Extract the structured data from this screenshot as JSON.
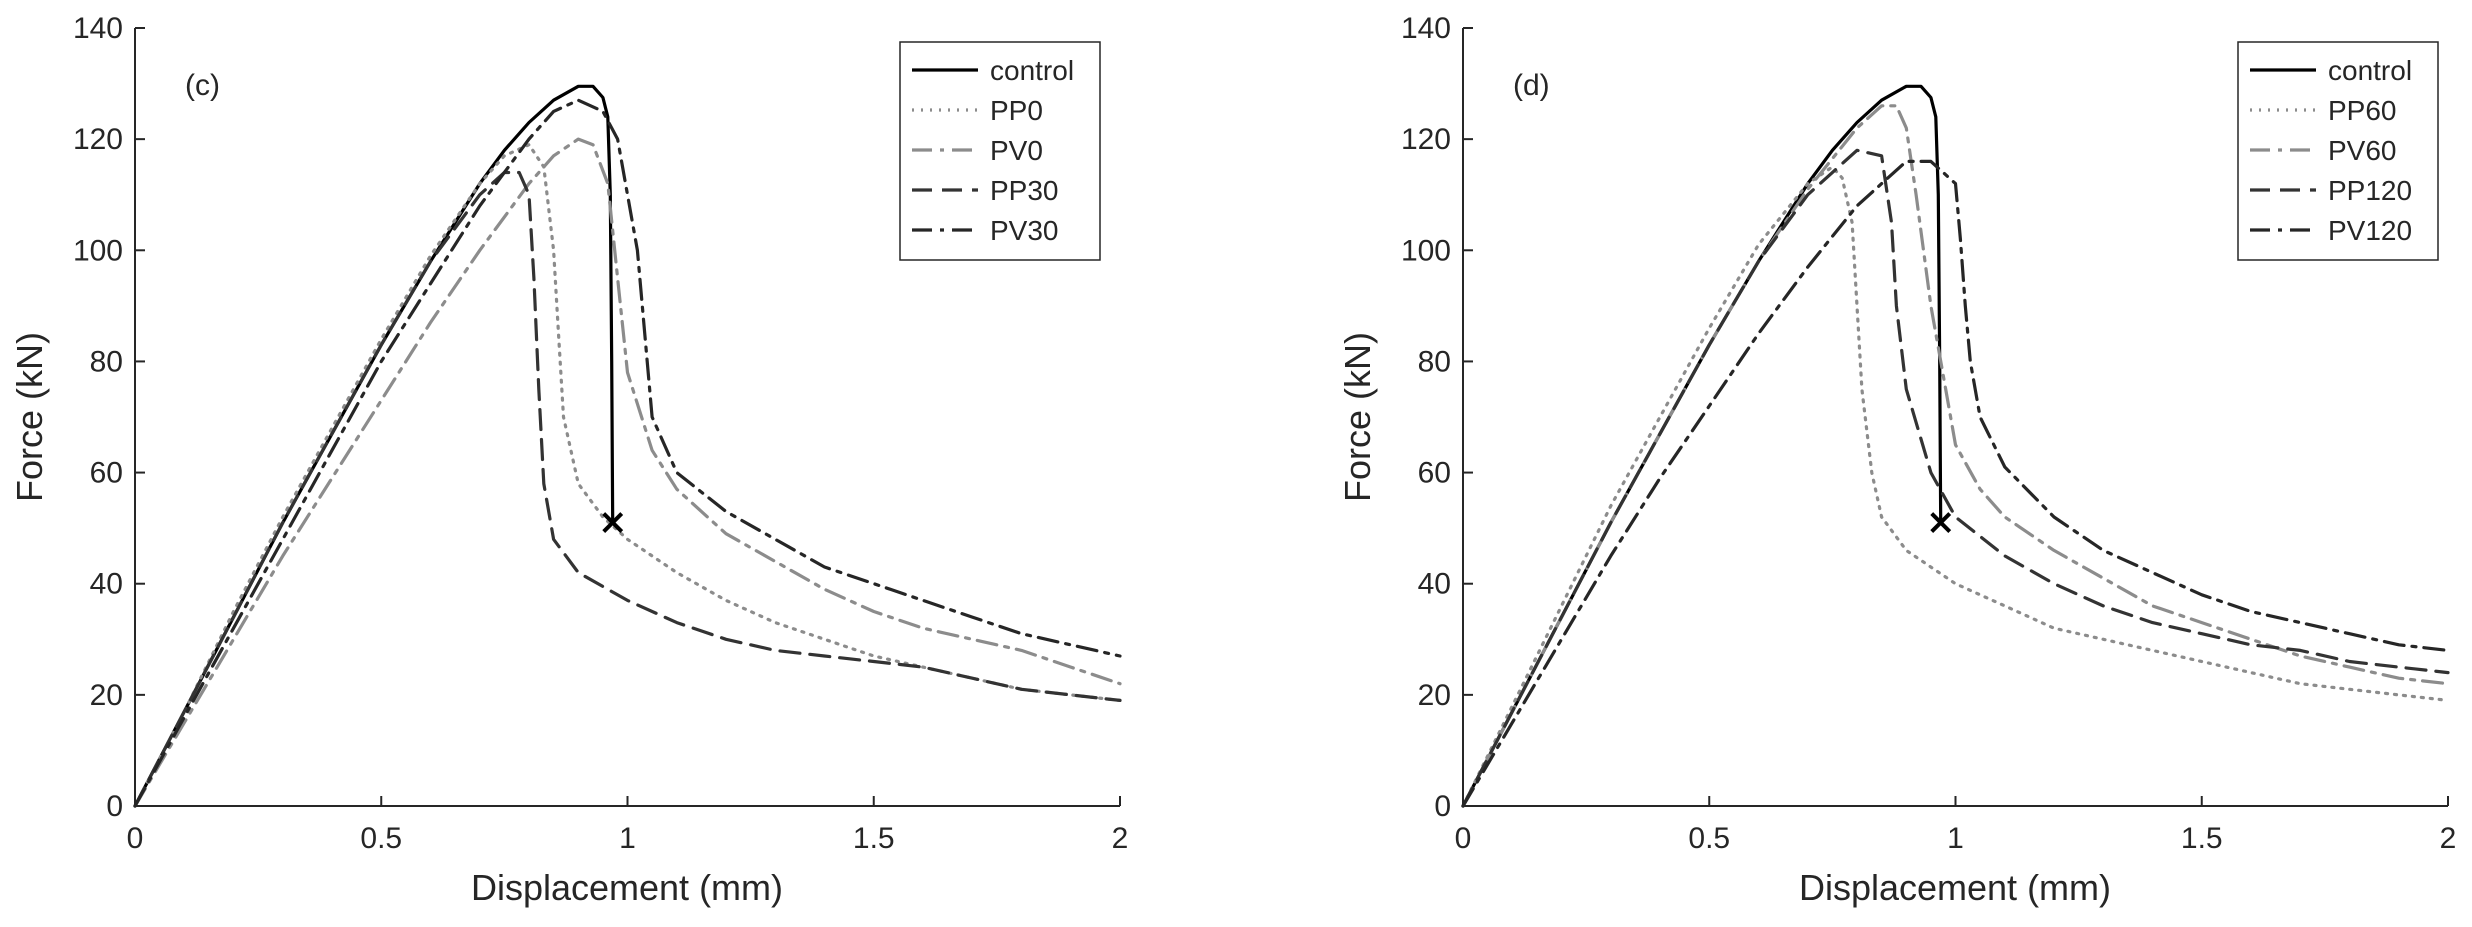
{
  "chart_data": [
    {
      "type": "line",
      "panel_label": "(c)",
      "xlabel": "Displacement (mm)",
      "ylabel": "Force (kN)",
      "xlim": [
        0,
        2
      ],
      "ylim": [
        0,
        140
      ],
      "xticks": [
        "0",
        "0.5",
        "1",
        "1.5",
        "2"
      ],
      "yticks": [
        "0",
        "20",
        "40",
        "60",
        "80",
        "100",
        "120",
        "140"
      ],
      "grid": false,
      "legend_position": "top-right",
      "failure_marker": {
        "x": 0.97,
        "y": 51
      },
      "series": [
        {
          "name": "control",
          "color": "#000000",
          "dash": "solid",
          "x": [
            0,
            0.1,
            0.2,
            0.3,
            0.4,
            0.5,
            0.6,
            0.7,
            0.75,
            0.8,
            0.85,
            0.9,
            0.93,
            0.95,
            0.96,
            0.965,
            0.968,
            0.97
          ],
          "y": [
            0,
            17,
            34,
            51,
            67,
            83,
            98,
            112,
            118,
            123,
            127,
            129.5,
            129.5,
            127.5,
            124,
            110,
            80,
            51
          ]
        },
        {
          "name": "PP0",
          "color": "#8c8c8c",
          "dash": "dot",
          "x": [
            0,
            0.1,
            0.2,
            0.3,
            0.4,
            0.5,
            0.6,
            0.7,
            0.75,
            0.8,
            0.83,
            0.85,
            0.86,
            0.87,
            0.9,
            0.95,
            1.0,
            1.1,
            1.2,
            1.3,
            1.4,
            1.5,
            1.6,
            1.7,
            1.8,
            1.9,
            2.0
          ],
          "y": [
            0,
            17,
            35,
            52,
            68,
            84,
            99,
            112,
            117,
            119,
            115,
            100,
            85,
            70,
            58,
            52,
            48,
            42,
            37,
            33,
            30,
            27,
            25,
            23,
            21,
            20,
            19
          ]
        },
        {
          "name": "PV0",
          "color": "#8c8c8c",
          "dash": "dashdot",
          "x": [
            0,
            0.1,
            0.2,
            0.3,
            0.4,
            0.5,
            0.6,
            0.7,
            0.8,
            0.85,
            0.9,
            0.93,
            0.96,
            0.98,
            1.0,
            1.05,
            1.1,
            1.2,
            1.3,
            1.4,
            1.5,
            1.6,
            1.7,
            1.8,
            1.9,
            2.0
          ],
          "y": [
            0,
            15,
            30,
            45,
            59,
            73,
            87,
            100,
            112,
            117,
            120,
            119,
            112,
            95,
            78,
            64,
            57,
            49,
            44,
            39,
            35,
            32,
            30,
            28,
            25,
            22
          ]
        },
        {
          "name": "PP30",
          "color": "#333333",
          "dash": "dash",
          "x": [
            0,
            0.1,
            0.2,
            0.3,
            0.4,
            0.5,
            0.6,
            0.7,
            0.75,
            0.78,
            0.8,
            0.81,
            0.82,
            0.83,
            0.85,
            0.9,
            1.0,
            1.1,
            1.2,
            1.3,
            1.4,
            1.5,
            1.6,
            1.7,
            1.8,
            1.9,
            2.0
          ],
          "y": [
            0,
            17,
            34,
            51,
            67,
            83,
            98,
            110,
            114,
            114,
            110,
            95,
            75,
            58,
            48,
            42,
            37,
            33,
            30,
            28,
            27,
            26,
            25,
            23,
            21,
            20,
            19
          ]
        },
        {
          "name": "PV30",
          "color": "#262626",
          "dash": "dashdot",
          "x": [
            0,
            0.1,
            0.2,
            0.3,
            0.4,
            0.5,
            0.6,
            0.7,
            0.8,
            0.85,
            0.9,
            0.95,
            0.98,
            1.0,
            1.02,
            1.03,
            1.05,
            1.1,
            1.2,
            1.3,
            1.4,
            1.5,
            1.6,
            1.7,
            1.8,
            1.9,
            2.0
          ],
          "y": [
            0,
            16,
            32,
            48,
            64,
            80,
            94,
            108,
            120,
            125,
            127,
            125,
            120,
            110,
            100,
            90,
            70,
            60,
            53,
            48,
            43,
            40,
            37,
            34,
            31,
            29,
            27
          ]
        }
      ]
    },
    {
      "type": "line",
      "panel_label": "(d)",
      "xlabel": "Displacement (mm)",
      "ylabel": "Force (kN)",
      "xlim": [
        0,
        2
      ],
      "ylim": [
        0,
        140
      ],
      "xticks": [
        "0",
        "0.5",
        "1",
        "1.5",
        "2"
      ],
      "yticks": [
        "0",
        "20",
        "40",
        "60",
        "80",
        "100",
        "120",
        "140"
      ],
      "grid": false,
      "legend_position": "top-right",
      "failure_marker": {
        "x": 0.97,
        "y": 51
      },
      "series": [
        {
          "name": "control",
          "color": "#000000",
          "dash": "solid",
          "x": [
            0,
            0.1,
            0.2,
            0.3,
            0.4,
            0.5,
            0.6,
            0.7,
            0.75,
            0.8,
            0.85,
            0.9,
            0.93,
            0.95,
            0.96,
            0.965,
            0.968,
            0.97
          ],
          "y": [
            0,
            17,
            34,
            51,
            67,
            83,
            98,
            112,
            118,
            123,
            127,
            129.5,
            129.5,
            127.5,
            124,
            110,
            80,
            51
          ]
        },
        {
          "name": "PP60",
          "color": "#8c8c8c",
          "dash": "dot",
          "x": [
            0,
            0.1,
            0.2,
            0.3,
            0.4,
            0.5,
            0.6,
            0.7,
            0.75,
            0.77,
            0.79,
            0.8,
            0.81,
            0.83,
            0.85,
            0.9,
            1.0,
            1.1,
            1.2,
            1.3,
            1.4,
            1.5,
            1.6,
            1.7,
            1.8,
            1.9,
            2.0
          ],
          "y": [
            0,
            18,
            36,
            54,
            70,
            86,
            101,
            112,
            115,
            113,
            105,
            90,
            75,
            60,
            52,
            46,
            40,
            36,
            32,
            30,
            28,
            26,
            24,
            22,
            21,
            20,
            19
          ]
        },
        {
          "name": "PV60",
          "color": "#8c8c8c",
          "dash": "dashdot",
          "x": [
            0,
            0.1,
            0.2,
            0.3,
            0.4,
            0.5,
            0.6,
            0.7,
            0.8,
            0.85,
            0.88,
            0.9,
            0.92,
            0.95,
            0.98,
            1.0,
            1.05,
            1.1,
            1.2,
            1.3,
            1.4,
            1.5,
            1.6,
            1.7,
            1.8,
            1.9,
            2.0
          ],
          "y": [
            0,
            17,
            34,
            51,
            67,
            83,
            98,
            111,
            122,
            126,
            126,
            122,
            110,
            90,
            75,
            65,
            57,
            52,
            46,
            41,
            36,
            33,
            30,
            27,
            25,
            23,
            22
          ]
        },
        {
          "name": "PP120",
          "color": "#333333",
          "dash": "dash",
          "x": [
            0,
            0.1,
            0.2,
            0.3,
            0.4,
            0.5,
            0.6,
            0.7,
            0.8,
            0.85,
            0.87,
            0.88,
            0.9,
            0.95,
            1.0,
            1.1,
            1.2,
            1.3,
            1.4,
            1.5,
            1.6,
            1.7,
            1.8,
            1.9,
            2.0
          ],
          "y": [
            0,
            17,
            34,
            51,
            67,
            83,
            98,
            110,
            118,
            117,
            105,
            90,
            75,
            60,
            52,
            45,
            40,
            36,
            33,
            31,
            29,
            28,
            26,
            25,
            24
          ]
        },
        {
          "name": "PV120",
          "color": "#262626",
          "dash": "dashdot",
          "x": [
            0,
            0.1,
            0.2,
            0.3,
            0.4,
            0.5,
            0.6,
            0.7,
            0.8,
            0.9,
            0.95,
            1.0,
            1.01,
            1.02,
            1.03,
            1.05,
            1.1,
            1.2,
            1.3,
            1.4,
            1.5,
            1.6,
            1.7,
            1.8,
            1.9,
            2.0
          ],
          "y": [
            0,
            15,
            30,
            45,
            59,
            72,
            85,
            97,
            108,
            116,
            116,
            112,
            102,
            90,
            80,
            70,
            61,
            52,
            46,
            42,
            38,
            35,
            33,
            31,
            29,
            28
          ]
        }
      ]
    }
  ]
}
